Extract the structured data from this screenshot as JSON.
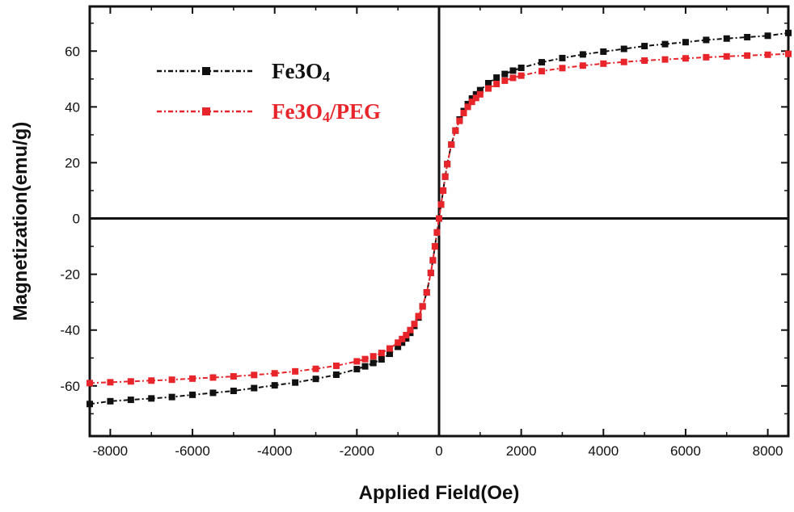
{
  "chart_data": {
    "type": "scatter",
    "title": "",
    "xlabel": "Applied Field(Oe)",
    "ylabel": "Magnetization(emu/g)",
    "xlim": [
      -8500,
      8500
    ],
    "ylim": [
      -78,
      76
    ],
    "xticks": [
      -8000,
      -6000,
      -4000,
      -2000,
      0,
      2000,
      4000,
      6000,
      8000
    ],
    "xtick_labels": [
      "-8000",
      "-6000",
      "-4000",
      "-2000",
      "0",
      "2000",
      "4000",
      "6000",
      "8000"
    ],
    "yticks": [
      -60,
      -40,
      -20,
      0,
      20,
      40,
      60
    ],
    "ytick_labels": [
      "-60",
      "-40",
      "-20",
      "0",
      "20",
      "40",
      "60"
    ],
    "grid": false,
    "legend_position": "top-left",
    "series": [
      {
        "name": "Fe3O4",
        "label_main": "Fe3O",
        "label_sub": "4",
        "color": "#111111",
        "x": [
          -8500,
          -8000,
          -7500,
          -7000,
          -6500,
          -6000,
          -5500,
          -5000,
          -4500,
          -4000,
          -3500,
          -3000,
          -2500,
          -2000,
          -1800,
          -1600,
          -1400,
          -1200,
          -1000,
          -900,
          -800,
          -700,
          -600,
          -500,
          -400,
          -300,
          -200,
          -150,
          -100,
          -50,
          0,
          50,
          100,
          150,
          200,
          300,
          400,
          500,
          600,
          700,
          800,
          900,
          1000,
          1200,
          1400,
          1600,
          1800,
          2000,
          2500,
          3000,
          3500,
          4000,
          4500,
          5000,
          5500,
          6000,
          6500,
          7000,
          7500,
          8000,
          8500
        ],
        "y": [
          -66.5,
          -65.5,
          -65,
          -64.5,
          -64,
          -63.2,
          -62.5,
          -61.8,
          -60.8,
          -59.8,
          -58.8,
          -57.5,
          -56,
          -54,
          -53,
          -51.8,
          -50.5,
          -48.5,
          -46,
          -44.5,
          -43,
          -41,
          -38.5,
          -35.5,
          -31.5,
          -26.5,
          -19.5,
          -15,
          -10,
          -5,
          0,
          5,
          10,
          15,
          19.5,
          26.5,
          31.5,
          35.5,
          38.5,
          41,
          43,
          44.5,
          46,
          48.5,
          50.5,
          51.8,
          53,
          54,
          56,
          57.5,
          58.8,
          59.8,
          60.8,
          61.8,
          62.5,
          63.2,
          64,
          64.5,
          65,
          65.5,
          66.5
        ]
      },
      {
        "name": "Fe3O4/PEG",
        "label_main": "Fe3O",
        "label_sub": "4",
        "label_suffix": "/PEG",
        "color": "#e8252b",
        "x": [
          -8500,
          -8000,
          -7500,
          -7000,
          -6500,
          -6000,
          -5500,
          -5000,
          -4500,
          -4000,
          -3500,
          -3000,
          -2500,
          -2000,
          -1800,
          -1600,
          -1400,
          -1200,
          -1000,
          -900,
          -800,
          -700,
          -600,
          -500,
          -400,
          -300,
          -200,
          -150,
          -100,
          -50,
          0,
          50,
          100,
          150,
          200,
          300,
          400,
          500,
          600,
          700,
          800,
          900,
          1000,
          1200,
          1400,
          1600,
          1800,
          2000,
          2500,
          3000,
          3500,
          4000,
          4500,
          5000,
          5500,
          6000,
          6500,
          7000,
          7500,
          8000,
          8500
        ],
        "y": [
          -59,
          -58.7,
          -58.4,
          -58.1,
          -57.8,
          -57.4,
          -57,
          -56.6,
          -56.1,
          -55.5,
          -54.8,
          -53.9,
          -52.8,
          -51.2,
          -50.4,
          -49.4,
          -48.2,
          -46.6,
          -44.5,
          -43.2,
          -41.8,
          -40,
          -37.8,
          -35,
          -31.5,
          -26.5,
          -19.5,
          -15,
          -10,
          -5,
          0,
          5,
          10,
          15,
          19.5,
          26.5,
          31.5,
          35,
          37.8,
          40,
          41.8,
          43.2,
          44.5,
          46.6,
          48.2,
          49.4,
          50.4,
          51.2,
          52.8,
          53.9,
          54.8,
          55.5,
          56.1,
          56.6,
          57,
          57.4,
          57.8,
          58.1,
          58.4,
          58.7,
          59
        ]
      }
    ]
  }
}
